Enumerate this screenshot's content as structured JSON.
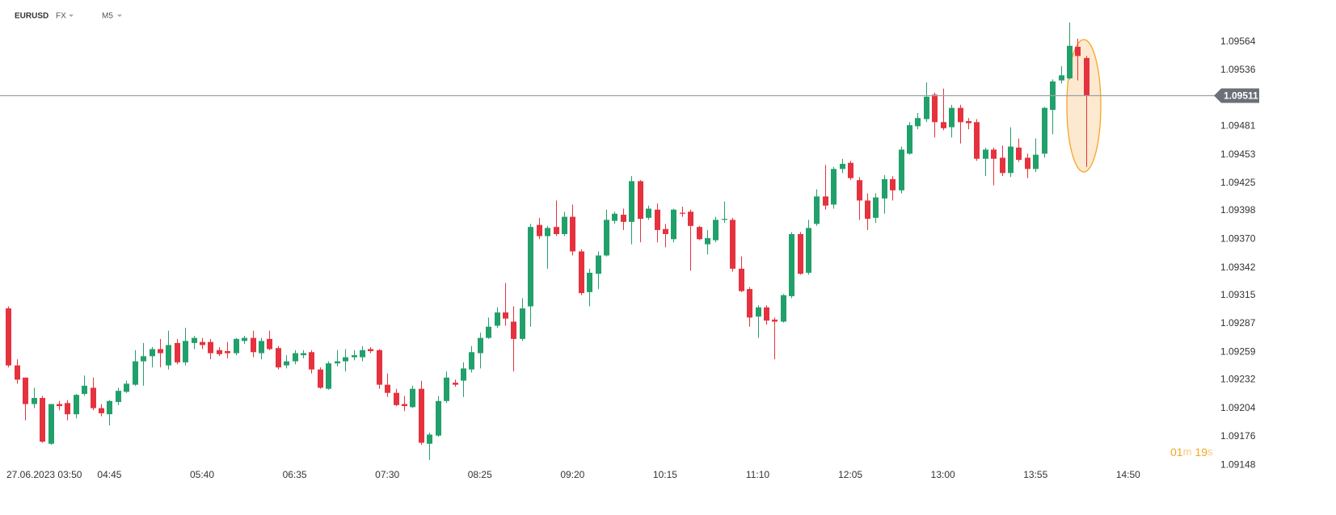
{
  "chart_data": {
    "type": "candlestick",
    "symbol": "EURUSD",
    "market": "FX",
    "interval": "M5",
    "up_color": "#22a06b",
    "down_color": "#e5323e",
    "x": [
      "03:45",
      "03:50",
      "03:55",
      "04:00",
      "04:05",
      "04:10",
      "04:15",
      "04:20",
      "04:25",
      "04:30",
      "04:35",
      "04:40",
      "04:45",
      "04:50",
      "04:55",
      "05:00",
      "05:05",
      "05:10",
      "05:15",
      "05:20",
      "05:25",
      "05:30",
      "05:35",
      "05:40",
      "05:45",
      "05:50",
      "05:55",
      "06:00",
      "06:05",
      "06:10",
      "06:15",
      "06:20",
      "06:25",
      "06:30",
      "06:35",
      "06:40",
      "06:45",
      "06:50",
      "06:55",
      "07:00",
      "07:05",
      "07:10",
      "07:15",
      "07:20",
      "07:25",
      "07:30",
      "07:35",
      "07:40",
      "07:45",
      "07:50",
      "07:55",
      "08:00",
      "08:05",
      "08:10",
      "08:15",
      "08:20",
      "08:25",
      "08:30",
      "08:35",
      "08:40",
      "08:45",
      "08:50",
      "08:55",
      "09:00",
      "09:05",
      "09:10",
      "09:15",
      "09:20",
      "09:25",
      "09:30",
      "09:35",
      "09:40",
      "09:45",
      "09:50",
      "09:55",
      "10:00",
      "10:05",
      "10:10",
      "10:15",
      "10:20",
      "10:25",
      "10:30",
      "10:35",
      "10:40",
      "10:45",
      "10:50",
      "10:55",
      "11:00",
      "11:05",
      "11:10",
      "11:15",
      "11:20",
      "11:25",
      "11:30",
      "11:35",
      "11:40",
      "11:45",
      "11:50",
      "11:55",
      "12:00",
      "12:05",
      "12:10",
      "12:15",
      "12:20",
      "12:25",
      "12:30",
      "12:35",
      "12:40",
      "12:45",
      "12:50",
      "12:55",
      "13:00",
      "13:05",
      "13:10",
      "13:15",
      "13:20",
      "13:25",
      "13:30",
      "13:35",
      "13:40",
      "13:45",
      "13:50",
      "13:55",
      "14:00",
      "14:05",
      "14:10",
      "14:15",
      "14:20",
      "14:25"
    ],
    "open": [
      1.09302,
      1.09246,
      1.09234,
      1.09208,
      1.09214,
      1.09169,
      1.09208,
      1.09209,
      1.09198,
      1.09218,
      1.09224,
      1.09204,
      1.09198,
      1.0921,
      1.0922,
      1.09227,
      1.0925,
      1.09255,
      1.09262,
      1.09246,
      1.09268,
      1.09249,
      1.09268,
      1.09269,
      1.09269,
      1.09261,
      1.0926,
      1.09258,
      1.0927,
      1.09273,
      1.09258,
      1.09272,
      1.09263,
      1.09246,
      1.0925,
      1.09256,
      1.09259,
      1.09242,
      1.09223,
      1.09248,
      1.0925,
      1.09254,
      1.09254,
      1.09262,
      1.09261,
      1.09227,
      1.09219,
      1.09208,
      1.09205,
      1.09223,
      1.09169,
      1.09177,
      1.09211,
      1.09229,
      1.09231,
      1.09242,
      1.09258,
      1.09273,
      1.09285,
      1.09298,
      1.09289,
      1.09272,
      1.09304,
      1.09384,
      1.09373,
      1.09382,
      1.09375,
      1.09392,
      1.09358,
      1.09318,
      1.09336,
      1.09354,
      1.09388,
      1.09394,
      1.09387,
      1.09427,
      1.09391,
      1.09399,
      1.0938,
      1.0937,
      1.09396,
      1.09397,
      1.09382,
      1.09365,
      1.09369,
      1.09389,
      1.09389,
      1.09341,
      1.09321,
      1.09294,
      1.09303,
      1.09291,
      1.09289,
      1.09314,
      1.09375,
      1.09337,
      1.09385,
      1.09412,
      1.09404,
      1.09439,
      1.09445,
      1.09428,
      1.09408,
      1.09391,
      1.0941,
      1.09429,
      1.09418,
      1.09454,
      1.09481,
      1.09488,
      1.09512,
      1.09485,
      1.0948,
      1.09499,
      1.09486,
      1.09485,
      1.09449,
      1.09458,
      1.0945,
      1.09435,
      1.0946,
      1.0945,
      1.09439,
      1.09454,
      1.09497,
      1.09526,
      1.09528,
      1.09559,
      1.09548
    ],
    "high": [
      1.09304,
      1.09252,
      1.09234,
      1.09224,
      1.09216,
      1.09208,
      1.09211,
      1.09212,
      1.09218,
      1.09236,
      1.09234,
      1.09208,
      1.09212,
      1.09224,
      1.09231,
      1.09261,
      1.09268,
      1.09264,
      1.09272,
      1.0928,
      1.09272,
      1.09283,
      1.09275,
      1.09273,
      1.09272,
      1.09264,
      1.09269,
      1.09273,
      1.09275,
      1.0928,
      1.09273,
      1.0928,
      1.09265,
      1.09256,
      1.09261,
      1.09261,
      1.09261,
      1.09244,
      1.0925,
      1.09261,
      1.09262,
      1.09261,
      1.09265,
      1.09264,
      1.09262,
      1.09238,
      1.09223,
      1.09216,
      1.09226,
      1.09231,
      1.0918,
      1.09216,
      1.0924,
      1.09232,
      1.09249,
      1.09265,
      1.09278,
      1.09293,
      1.09303,
      1.09327,
      1.09304,
      1.09312,
      1.09385,
      1.09391,
      1.09383,
      1.09408,
      1.09397,
      1.09404,
      1.0936,
      1.09341,
      1.09358,
      1.09399,
      1.09397,
      1.094,
      1.09432,
      1.09428,
      1.09403,
      1.09405,
      1.09385,
      1.094,
      1.09402,
      1.09399,
      1.09383,
      1.09379,
      1.09392,
      1.09407,
      1.09391,
      1.09353,
      1.09323,
      1.09305,
      1.09305,
      1.09293,
      1.09316,
      1.09377,
      1.09377,
      1.09389,
      1.09419,
      1.09443,
      1.09441,
      1.09449,
      1.09447,
      1.09431,
      1.09415,
      1.09415,
      1.09433,
      1.09432,
      1.09461,
      1.09485,
      1.09494,
      1.09524,
      1.09514,
      1.09518,
      1.09502,
      1.09502,
      1.09489,
      1.09488,
      1.0946,
      1.0946,
      1.09462,
      1.0948,
      1.09469,
      1.09454,
      1.09469,
      1.095,
      1.09527,
      1.0954,
      1.09583,
      1.09567,
      1.0955
    ],
    "low": [
      1.09244,
      1.09228,
      1.09192,
      1.09204,
      1.0917,
      1.09168,
      1.09202,
      1.09192,
      1.09194,
      1.09216,
      1.09202,
      1.09196,
      1.09187,
      1.09207,
      1.09219,
      1.09226,
      1.09226,
      1.09244,
      1.09244,
      1.09242,
      1.09247,
      1.09246,
      1.09262,
      1.09262,
      1.09252,
      1.09255,
      1.09253,
      1.09256,
      1.09267,
      1.09254,
      1.09252,
      1.09261,
      1.09242,
      1.09243,
      1.09247,
      1.09253,
      1.09238,
      1.09223,
      1.09222,
      1.09245,
      1.0924,
      1.09251,
      1.0925,
      1.09258,
      1.09223,
      1.09215,
      1.09206,
      1.09201,
      1.09204,
      1.09168,
      1.09153,
      1.09176,
      1.09209,
      1.09225,
      1.09215,
      1.09239,
      1.09243,
      1.09272,
      1.09283,
      1.09285,
      1.0924,
      1.0927,
      1.09284,
      1.0937,
      1.09341,
      1.09373,
      1.09373,
      1.09354,
      1.09315,
      1.09304,
      1.09321,
      1.09353,
      1.09385,
      1.09379,
      1.09365,
      1.09367,
      1.09389,
      1.09367,
      1.09362,
      1.09367,
      1.09392,
      1.09339,
      1.09369,
      1.09355,
      1.09367,
      1.09386,
      1.09338,
      1.09318,
      1.09284,
      1.09273,
      1.09286,
      1.09252,
      1.09288,
      1.09312,
      1.09335,
      1.09335,
      1.09383,
      1.09399,
      1.094,
      1.09435,
      1.09428,
      1.09389,
      1.09379,
      1.09386,
      1.09395,
      1.09408,
      1.09415,
      1.09453,
      1.09478,
      1.09485,
      1.0947,
      1.09477,
      1.0947,
      1.09464,
      1.09478,
      1.09447,
      1.09432,
      1.09423,
      1.09432,
      1.09431,
      1.09446,
      1.0943,
      1.09436,
      1.0945,
      1.09473,
      1.09523,
      1.09527,
      1.09526,
      1.09441
    ],
    "close": [
      1.09246,
      1.09232,
      1.09208,
      1.09214,
      1.09171,
      1.09208,
      1.09206,
      1.09198,
      1.09217,
      1.09226,
      1.09204,
      1.09199,
      1.09211,
      1.09221,
      1.09228,
      1.0925,
      1.09255,
      1.09262,
      1.09258,
      1.09266,
      1.09249,
      1.0927,
      1.09273,
      1.09266,
      1.09258,
      1.09257,
      1.09258,
      1.09272,
      1.09273,
      1.09259,
      1.0927,
      1.09262,
      1.09244,
      1.0925,
      1.09258,
      1.09258,
      1.09242,
      1.09224,
      1.09248,
      1.0925,
      1.09254,
      1.09256,
      1.09261,
      1.0926,
      1.09227,
      1.09219,
      1.09207,
      1.09206,
      1.09223,
      1.0917,
      1.09178,
      1.09211,
      1.09234,
      1.09227,
      1.09243,
      1.09259,
      1.09273,
      1.09284,
      1.09298,
      1.09292,
      1.09272,
      1.09302,
      1.09382,
      1.09373,
      1.09381,
      1.09375,
      1.09392,
      1.09358,
      1.09317,
      1.09337,
      1.09354,
      1.09389,
      1.09395,
      1.09387,
      1.09427,
      1.0939,
      1.094,
      1.09379,
      1.09375,
      1.09399,
      1.09395,
      1.09383,
      1.0937,
      1.09371,
      1.09389,
      1.0939,
      1.09341,
      1.09319,
      1.09293,
      1.09303,
      1.0929,
      1.09289,
      1.09315,
      1.09375,
      1.09336,
      1.09381,
      1.09412,
      1.09403,
      1.09439,
      1.09444,
      1.0943,
      1.09408,
      1.0939,
      1.09411,
      1.09429,
      1.09418,
      1.09458,
      1.09482,
      1.09489,
      1.0951,
      1.09485,
      1.09479,
      1.09499,
      1.09485,
      1.09484,
      1.09449,
      1.09458,
      1.09449,
      1.09435,
      1.09461,
      1.09448,
      1.09439,
      1.09453,
      1.09499,
      1.09525,
      1.09531,
      1.0956,
      1.0955,
      1.09511
    ],
    "last_price": 1.09511,
    "price_line_color": "#9aa0a6",
    "xlim": [
      "03:40",
      "15:40"
    ],
    "xticks": [
      {
        "value": "03:50",
        "label": "27.06.2023 03:50"
      },
      "04:45",
      "05:40",
      "06:35",
      "07:30",
      "08:25",
      "09:20",
      "10:15",
      "11:10",
      "12:05",
      "13:00",
      "13:55",
      "14:50"
    ],
    "ylim": [
      1.09145,
      1.09605
    ],
    "yticks": [
      1.09564,
      1.09536,
      1.09481,
      1.09453,
      1.09425,
      1.09398,
      {
        "value": 1.0937,
        "label": "1.09370"
      },
      1.09342,
      1.09315,
      1.09287,
      1.09259,
      1.09232,
      1.09204,
      1.09176,
      1.09148
    ],
    "grid": false,
    "countdown": [
      "01",
      "m",
      "19",
      "s"
    ]
  }
}
